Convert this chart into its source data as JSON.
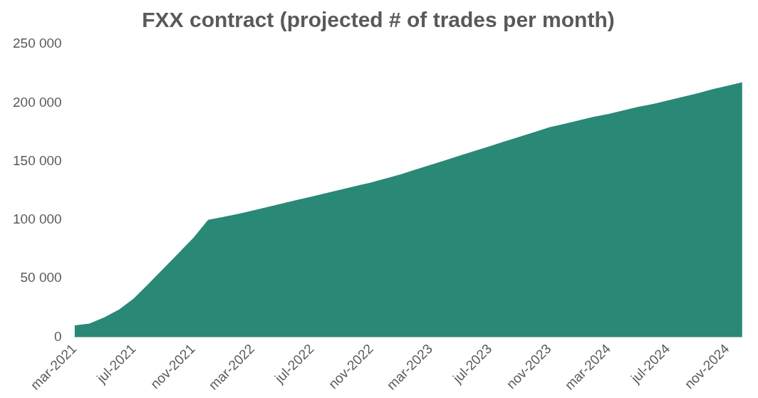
{
  "chart_data": {
    "type": "area",
    "title": "FXX contract (projected # of trades per month)",
    "categories": [
      "mar-2021",
      null,
      null,
      null,
      "jul-2021",
      null,
      null,
      null,
      "nov-2021",
      null,
      null,
      null,
      "mar-2022",
      null,
      null,
      null,
      "jul-2022",
      null,
      null,
      null,
      "nov-2022",
      null,
      null,
      null,
      "mar-2023",
      null,
      null,
      null,
      "jul-2023",
      null,
      null,
      null,
      "nov-2023",
      null,
      null,
      null,
      "mar-2024",
      null,
      null,
      null,
      "jul-2024",
      null,
      null,
      null,
      "nov-2024",
      null
    ],
    "series": [
      {
        "color": "#2a8876",
        "values": [
          10000,
          11500,
          16800,
          23400,
          33000,
          45600,
          58500,
          71500,
          84500,
          100000,
          102500,
          105000,
          108000,
          111000,
          114000,
          117000,
          120000,
          123000,
          126000,
          129000,
          132000,
          135500,
          139000,
          143000,
          147000,
          151000,
          155000,
          159000,
          163000,
          167000,
          171000,
          175000,
          179000,
          182000,
          185000,
          188000,
          190500,
          193500,
          196500,
          199000,
          202000,
          205000,
          208000,
          211500,
          214500,
          217500
        ]
      }
    ],
    "ylim": [
      0,
      250000
    ],
    "yticks": [
      0,
      {
        "value": 50000,
        "label": "50 000"
      },
      {
        "value": 100000,
        "label": "100 000"
      },
      {
        "value": 150000,
        "label": "150 000"
      },
      {
        "value": 200000,
        "label": "200 000"
      },
      {
        "value": 250000,
        "label": "250 000"
      }
    ],
    "legend": false
  }
}
